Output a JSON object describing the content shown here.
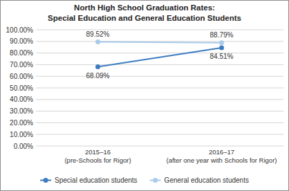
{
  "chart_data": {
    "type": "line",
    "title": "North High School Graduation Rates:\nSpecial Education and General Education Students",
    "categories": [
      "2015–16\n(pre-Schools for Rigor)",
      "2016–17\n(after one year with Schools for Rigor)"
    ],
    "series": [
      {
        "name": "Special education students",
        "color": "#3d7cc0",
        "marker": "circle",
        "values": [
          68.09,
          84.51
        ],
        "value_labels": [
          "68.09%",
          "84.51%"
        ]
      },
      {
        "name": "General education students",
        "color": "#a9cbea",
        "marker": "circle",
        "values": [
          89.52,
          88.79
        ],
        "value_labels": [
          "89.52%",
          "88.79%"
        ]
      }
    ],
    "ylim": [
      0,
      100
    ],
    "yticks": [
      {
        "value": 0,
        "label": "0.00%"
      },
      {
        "value": 10,
        "label": "10.00%"
      },
      {
        "value": 20,
        "label": "20.00%"
      },
      {
        "value": 30,
        "label": "30.00%"
      },
      {
        "value": 40,
        "label": "40.00%"
      },
      {
        "value": 50,
        "label": "50.00%"
      },
      {
        "value": 60,
        "label": "60.00%"
      },
      {
        "value": 70,
        "label": "70.00%"
      },
      {
        "value": 80,
        "label": "80.00%"
      },
      {
        "value": 90,
        "label": "90.00%"
      },
      {
        "value": 100,
        "label": "100.00%"
      }
    ],
    "grid": true,
    "legend": "bottom",
    "data_labels": true
  }
}
